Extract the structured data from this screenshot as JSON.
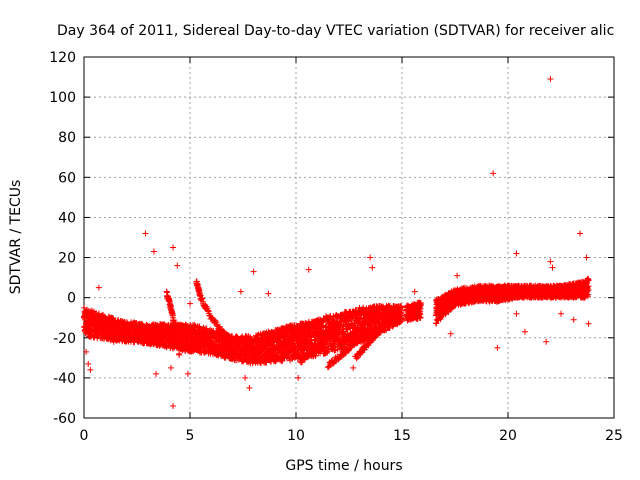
{
  "chart_data": {
    "type": "scatter",
    "title": "Day 364 of 2011, Sidereal Day-to-day VTEC variation (SDTVAR) for receiver alic",
    "xlabel": "GPS time / hours",
    "ylabel": "SDTVAR / TECUs",
    "xlim": [
      0,
      25
    ],
    "ylim": [
      -60,
      120
    ],
    "xticks": [
      0,
      5,
      10,
      15,
      20,
      25
    ],
    "yticks": [
      -60,
      -40,
      -20,
      0,
      20,
      40,
      60,
      80,
      100,
      120
    ],
    "grid": true,
    "marker": "plus",
    "color": "#ff0000",
    "series": [
      {
        "name": "SDTVAR",
        "trend": [
          {
            "x": 0.0,
            "y": -12,
            "spread": 7
          },
          {
            "x": 1.0,
            "y": -15,
            "spread": 6
          },
          {
            "x": 2.0,
            "y": -17,
            "spread": 5
          },
          {
            "x": 3.0,
            "y": -18,
            "spread": 5
          },
          {
            "x": 4.0,
            "y": -19,
            "spread": 6
          },
          {
            "x": 5.0,
            "y": -20,
            "spread": 7
          },
          {
            "x": 6.0,
            "y": -22,
            "spread": 6
          },
          {
            "x": 7.0,
            "y": -25,
            "spread": 6
          },
          {
            "x": 8.0,
            "y": -26,
            "spread": 7
          },
          {
            "x": 9.0,
            "y": -24,
            "spread": 8
          },
          {
            "x": 10.0,
            "y": -22,
            "spread": 9
          },
          {
            "x": 11.0,
            "y": -20,
            "spread": 9
          },
          {
            "x": 12.0,
            "y": -17,
            "spread": 9
          },
          {
            "x": 13.0,
            "y": -14,
            "spread": 9
          },
          {
            "x": 14.0,
            "y": -11,
            "spread": 7
          },
          {
            "x": 15.0,
            "y": -8,
            "spread": 4
          },
          {
            "x": 15.5,
            "y": -7,
            "spread": 4
          },
          {
            "x": 16.6,
            "y": -5,
            "spread": 4
          },
          {
            "x": 17.5,
            "y": 0,
            "spread": 4
          },
          {
            "x": 18.5,
            "y": 2,
            "spread": 4
          },
          {
            "x": 19.5,
            "y": 2,
            "spread": 4
          },
          {
            "x": 20.5,
            "y": 3,
            "spread": 3
          },
          {
            "x": 21.5,
            "y": 3,
            "spread": 3
          },
          {
            "x": 22.5,
            "y": 3,
            "spread": 3
          },
          {
            "x": 23.5,
            "y": 4,
            "spread": 4
          },
          {
            "x": 23.8,
            "y": 5,
            "spread": 5
          }
        ],
        "gaps": [
          [
            15.0,
            15.2
          ],
          [
            15.9,
            16.6
          ]
        ],
        "arcs": [
          {
            "x": [
              5.3,
              5.5,
              6.0,
              6.6,
              7.0
            ],
            "y": [
              8,
              0,
              -10,
              -18,
              -22
            ]
          },
          {
            "x": [
              3.9,
              4.1,
              4.3,
              4.5
            ],
            "y": [
              2,
              -5,
              -15,
              -28
            ]
          },
          {
            "x": [
              10.2,
              10.8,
              11.4,
              12.0
            ],
            "y": [
              -32,
              -26,
              -20,
              -14
            ]
          },
          {
            "x": [
              11.5,
              12.2,
              12.8,
              13.5
            ],
            "y": [
              -34,
              -28,
              -22,
              -16
            ]
          },
          {
            "x": [
              12.8,
              13.3,
              13.8,
              14.2
            ],
            "y": [
              -30,
              -24,
              -18,
              -12
            ]
          },
          {
            "x": [
              8.5,
              9.5,
              10.5,
              11.5
            ],
            "y": [
              -30,
              -22,
              -15,
              -10
            ]
          },
          {
            "x": [
              16.6,
              17.2,
              17.8,
              18.4
            ],
            "y": [
              -12,
              -6,
              0,
              4
            ]
          }
        ],
        "outliers": [
          {
            "x": 0.1,
            "y": -27
          },
          {
            "x": 0.2,
            "y": -33
          },
          {
            "x": 0.3,
            "y": -36
          },
          {
            "x": 0.7,
            "y": 5
          },
          {
            "x": 1.4,
            "y": -22
          },
          {
            "x": 2.9,
            "y": 32
          },
          {
            "x": 3.3,
            "y": 23
          },
          {
            "x": 3.4,
            "y": -38
          },
          {
            "x": 4.2,
            "y": 25
          },
          {
            "x": 4.4,
            "y": 16
          },
          {
            "x": 4.1,
            "y": -35
          },
          {
            "x": 4.2,
            "y": -54
          },
          {
            "x": 4.9,
            "y": -38
          },
          {
            "x": 5.0,
            "y": -3
          },
          {
            "x": 7.4,
            "y": 3
          },
          {
            "x": 8.0,
            "y": 13
          },
          {
            "x": 8.7,
            "y": 2
          },
          {
            "x": 7.8,
            "y": -45
          },
          {
            "x": 7.6,
            "y": -40
          },
          {
            "x": 10.1,
            "y": -40
          },
          {
            "x": 10.6,
            "y": 14
          },
          {
            "x": 12.7,
            "y": -35
          },
          {
            "x": 13.5,
            "y": 20
          },
          {
            "x": 13.6,
            "y": 15
          },
          {
            "x": 15.6,
            "y": 3
          },
          {
            "x": 17.3,
            "y": -18
          },
          {
            "x": 17.6,
            "y": 11
          },
          {
            "x": 19.3,
            "y": 62
          },
          {
            "x": 19.5,
            "y": -25
          },
          {
            "x": 20.4,
            "y": -8
          },
          {
            "x": 20.4,
            "y": 22
          },
          {
            "x": 20.8,
            "y": -17
          },
          {
            "x": 21.8,
            "y": -22
          },
          {
            "x": 22.0,
            "y": 109
          },
          {
            "x": 22.0,
            "y": 18
          },
          {
            "x": 22.1,
            "y": 15
          },
          {
            "x": 22.5,
            "y": -8
          },
          {
            "x": 23.1,
            "y": -11
          },
          {
            "x": 23.4,
            "y": 32
          },
          {
            "x": 23.7,
            "y": 20
          },
          {
            "x": 23.8,
            "y": -13
          }
        ]
      }
    ]
  }
}
